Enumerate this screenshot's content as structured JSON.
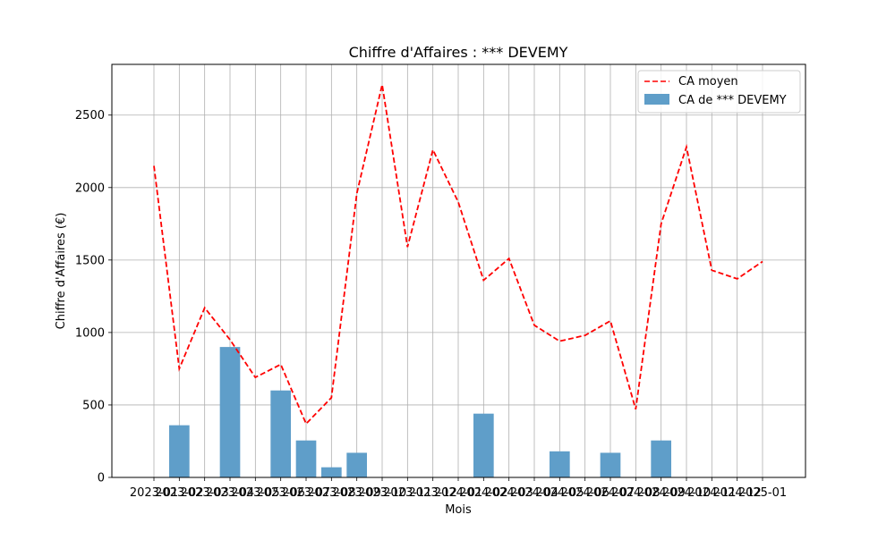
{
  "chart_data": {
    "type": "bar",
    "title": "Chiffre d'Affaires : *** DEVEMY",
    "xlabel": "Mois",
    "ylabel": "Chiffre d'Affaires (€)",
    "ylim": [
      0,
      2850
    ],
    "yticks": [
      0,
      500,
      1000,
      1500,
      2000,
      2500
    ],
    "grid": true,
    "legend_placement": "top-right",
    "categories": [
      "2023-01",
      "2023-02",
      "2023-03",
      "2023-04",
      "2023-05",
      "2023-06",
      "2023-07",
      "2023-08",
      "2023-09",
      "2023-10",
      "2023-11",
      "2023-12",
      "2024-01",
      "2024-02",
      "2024-03",
      "2024-04",
      "2024-05",
      "2024-06",
      "2024-07",
      "2024-08",
      "2024-09",
      "2024-10",
      "2024-11",
      "2024-12",
      "2025-01"
    ],
    "series": [
      {
        "name": "CA moyen",
        "kind": "line",
        "color": "#ff0000",
        "style": "dashed",
        "values": [
          2150,
          750,
          1170,
          950,
          690,
          780,
          370,
          550,
          1960,
          2710,
          1590,
          2260,
          1900,
          1360,
          1510,
          1050,
          940,
          980,
          1080,
          470,
          1750,
          2280,
          1430,
          1370,
          1490
        ]
      },
      {
        "name": "CA de *** DEVEMY",
        "kind": "bar",
        "color": "#5f9ec9",
        "values": [
          null,
          360,
          null,
          900,
          null,
          600,
          255,
          70,
          170,
          null,
          null,
          null,
          null,
          440,
          null,
          null,
          180,
          null,
          170,
          null,
          255,
          null,
          null,
          null,
          null
        ]
      }
    ]
  }
}
